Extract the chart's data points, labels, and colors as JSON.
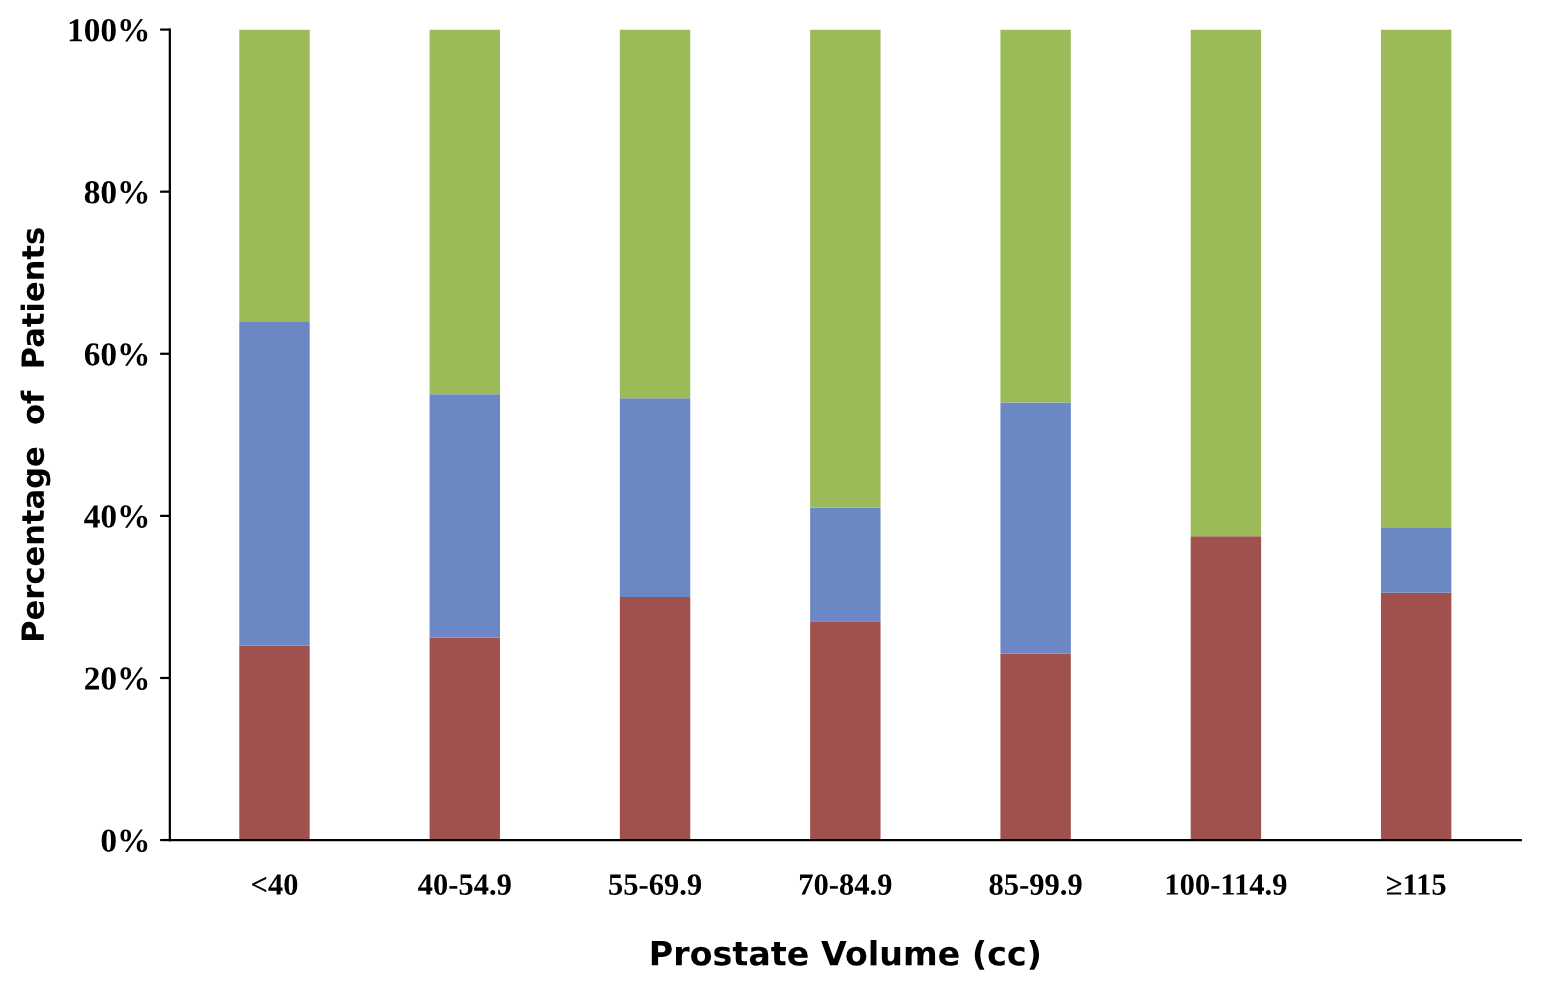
{
  "chart_data": {
    "type": "bar",
    "stacked": true,
    "xlabel": "Prostate Volume (cc)",
    "ylabel": "Percentage  of  Patients",
    "categories": [
      "<40",
      "40-54.9",
      "55-69.9",
      "70-84.9",
      "85-99.9",
      "100-114.9",
      "≥115"
    ],
    "series": [
      {
        "color": "#a0504d",
        "values": [
          24,
          25,
          30,
          27,
          23,
          37.5,
          30.5
        ]
      },
      {
        "color": "#6b88c4",
        "values": [
          40,
          30,
          24.5,
          14,
          31,
          0,
          8
        ]
      },
      {
        "color": "#9bbb59",
        "values": [
          36,
          45,
          45.5,
          59,
          46,
          62.5,
          61.5
        ]
      }
    ],
    "ylim": [
      0,
      100
    ],
    "yticks": [
      {
        "value": 0,
        "label": "0%"
      },
      {
        "value": 20,
        "label": "20%"
      },
      {
        "value": 40,
        "label": "40%"
      },
      {
        "value": 60,
        "label": "60%"
      },
      {
        "value": 80,
        "label": "80%"
      },
      {
        "value": 100,
        "label": "100%"
      }
    ],
    "grid": false,
    "legend": false
  }
}
